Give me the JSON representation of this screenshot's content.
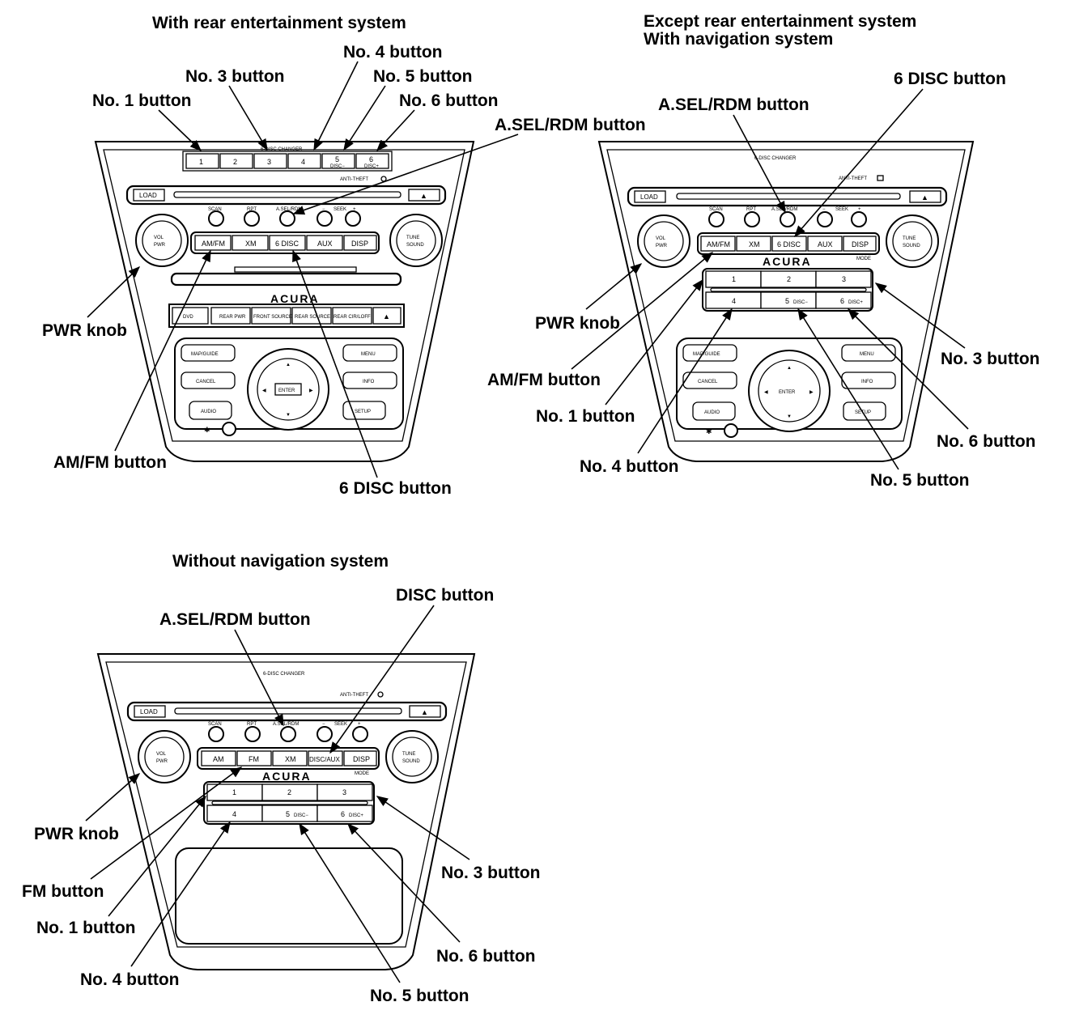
{
  "diagrams": {
    "rear_entertainment": {
      "title": "With rear entertainment system",
      "panel": {
        "changer_label": "6-DISC CHANGER",
        "preset_buttons": [
          "1",
          "2",
          "3",
          "4",
          "5",
          "6"
        ],
        "preset_sublabels": [
          "DISC−",
          "DISC+"
        ],
        "anti_theft": "ANTI-THEFT",
        "load": "LOAD",
        "top_buttons": [
          "SCAN",
          "RPT",
          "A.SEL/RDM",
          "−",
          "SEEK",
          "+"
        ],
        "mode_buttons": [
          "AM/FM",
          "XM",
          "6 DISC",
          "AUX",
          "DISP"
        ],
        "vol_knob": "VOL PUSH PWR",
        "tune_knob": "TUNE PUSH SOUND",
        "logo": "ACURA",
        "rear_buttons": [
          "DVD",
          "REAR PWR",
          "FRONT SOURCE",
          "REAR SOURCE",
          "REAR CIR/LOFF"
        ],
        "nav_buttons": [
          "MAP/GUIDE",
          "MENU",
          "CANCEL",
          "INFO",
          "AUDIO",
          "SETUP"
        ],
        "enter": "ENTER"
      },
      "callouts": {
        "no4": "No. 4 button",
        "no3": "No. 3 button",
        "no5": "No. 5 button",
        "no1": "No. 1 button",
        "no6": "No. 6 button",
        "asel": "A.SEL/RDM button",
        "pwr": "PWR knob",
        "amfm": "AM/FM button",
        "disc6": "6 DISC button"
      }
    },
    "navigation": {
      "title_line1": "Except rear entertainment system",
      "title_line2": "With navigation system",
      "panel": {
        "changer_label": "6-DISC CHANGER",
        "anti_theft": "ANTI-THEFT",
        "load": "LOAD",
        "top_buttons": [
          "SCAN",
          "RPT",
          "A.SEL/RDM",
          "−",
          "SEEK",
          "+"
        ],
        "mode_buttons": [
          "AM/FM",
          "XM",
          "6 DISC",
          "AUX",
          "DISP"
        ],
        "vol_knob": "VOL PUSH PWR",
        "tune_knob": "TUNE PUSH SOUND",
        "logo": "ACURA",
        "mode_note": "MODE",
        "preset_buttons": [
          "1",
          "2",
          "3",
          "4",
          "5",
          "6"
        ],
        "preset_sublabels": [
          "DISC−",
          "DISC+"
        ],
        "nav_buttons": [
          "MAP/GUIDE",
          "MENU",
          "CANCEL",
          "INFO",
          "AUDIO",
          "SETUP"
        ],
        "enter": "ENTER"
      },
      "callouts": {
        "disc6": "6 DISC button",
        "asel": "A.SEL/RDM button",
        "pwr": "PWR knob",
        "no3": "No. 3 button",
        "amfm": "AM/FM button",
        "no1": "No. 1 button",
        "no6": "No. 6 button",
        "no4": "No. 4 button",
        "no5": "No. 5 button"
      }
    },
    "no_navigation": {
      "title": "Without navigation system",
      "panel": {
        "changer_label": "6-DISC CHANGER",
        "anti_theft": "ANTI-THEFT",
        "load": "LOAD",
        "top_buttons": [
          "SCAN",
          "RPT",
          "A.SEL/RDM",
          "−",
          "SEEK",
          "+"
        ],
        "mode_buttons": [
          "AM",
          "FM",
          "XM",
          "DISC/AUX",
          "DISP"
        ],
        "vol_knob": "VOL PUSH PWR",
        "tune_knob": "TUNE PUSH SOUND",
        "logo": "ACURA",
        "mode_note": "MODE",
        "preset_buttons": [
          "1",
          "2",
          "3",
          "4",
          "5",
          "6"
        ],
        "preset_sublabels": [
          "DISC−",
          "DISC+"
        ]
      },
      "callouts": {
        "disc": "DISC button",
        "asel": "A.SEL/RDM button",
        "pwr": "PWR knob",
        "fm": "FM button",
        "no1": "No. 1 button",
        "no4": "No. 4 button",
        "no3": "No. 3 button",
        "no6": "No. 6 button",
        "no5": "No. 5 button"
      }
    }
  }
}
